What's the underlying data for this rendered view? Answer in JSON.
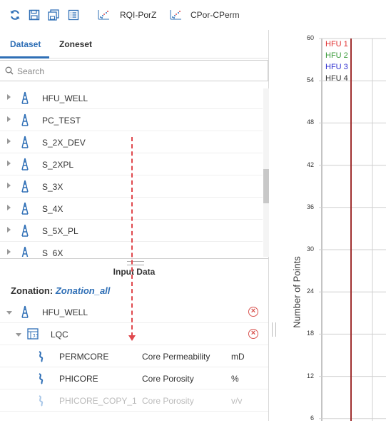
{
  "toolbar": {
    "icons": [
      "refresh-icon",
      "save-icon",
      "save-all-icon",
      "list-icon"
    ],
    "plot_buttons": [
      {
        "label": "RQI-PorZ",
        "icon": "scatter-plot-icon"
      },
      {
        "label": "CPor-CPerm",
        "icon": "scatter-plot-icon"
      }
    ]
  },
  "tabs": [
    {
      "label": "Dataset",
      "active": true
    },
    {
      "label": "Zoneset",
      "active": false
    }
  ],
  "search": {
    "placeholder": "Search",
    "value": ""
  },
  "wells": [
    "HFU_WELL",
    "PC_TEST",
    "S_2X_DEV",
    "S_2XPL",
    "S_3X",
    "S_4X",
    "S_5X_PL",
    "S_6X"
  ],
  "input_data": {
    "title": "Input Data",
    "zonation_label": "Zonation:",
    "zonation_value": "Zonation_all",
    "well": "HFU_WELL",
    "dataset": "LQC",
    "curves": [
      {
        "name": "PERMCORE",
        "family": "Core Permeability",
        "unit": "mD",
        "enabled": true
      },
      {
        "name": "PHICORE",
        "family": "Core Porosity",
        "unit": "%",
        "enabled": true
      },
      {
        "name": "PHICORE_COPY_1",
        "family": "Core Porosity",
        "unit": "v/v",
        "enabled": false
      }
    ]
  },
  "chart_data": {
    "type": "histogram",
    "ylabel": "Number of Points",
    "yticks": [
      60,
      54,
      48,
      42,
      36,
      30,
      24,
      18,
      12,
      6
    ],
    "ylim": [
      6,
      60
    ],
    "grid": true,
    "legend": [
      {
        "name": "HFU 1",
        "color": "#e03030"
      },
      {
        "name": "HFU 2",
        "color": "#3a9a3a"
      },
      {
        "name": "HFU 3",
        "color": "#3030d0"
      },
      {
        "name": "HFU 4",
        "color": "#333333"
      }
    ],
    "legend_position": "top-left"
  },
  "colors": {
    "accent": "#2f6fb6",
    "delete": "#d9534f",
    "arrow": "#e0484d"
  }
}
